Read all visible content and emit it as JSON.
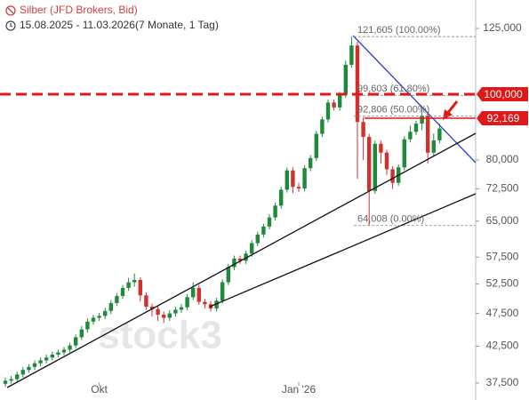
{
  "chart_data": {
    "type": "candlestick",
    "title": "Silber (JFD Brokers, Bid)",
    "subtitle": "15.08.2025 - 11.03.2026",
    "period": "(7 Monate, 1 Tag)",
    "watermark": "stock3",
    "log_scale": true,
    "up_color": "#1f8a3a",
    "down_color": "#d32f2f",
    "ylim": [
      35400,
      137700
    ],
    "yticks": [
      {
        "value": 37500,
        "label": "37,500"
      },
      {
        "value": 42500,
        "label": "42,500"
      },
      {
        "value": 47500,
        "label": "47,500"
      },
      {
        "value": 52500,
        "label": "52,500"
      },
      {
        "value": 57500,
        "label": "57,500"
      },
      {
        "value": 65000,
        "label": "65,000"
      },
      {
        "value": 72500,
        "label": "72,500"
      },
      {
        "value": 80000,
        "label": "80,000"
      },
      {
        "value": 125000,
        "label": "125,000"
      }
    ],
    "xticks": [
      {
        "value": 16,
        "label": "Okt"
      },
      {
        "value": 50,
        "label": "Jan '26"
      }
    ],
    "open": [
      37400,
      37800,
      38000,
      38600,
      39200,
      39600,
      40100,
      40500,
      40900,
      41300,
      41600,
      42000,
      42600,
      43800,
      45000,
      46200,
      46800,
      47100,
      47900,
      49200,
      50400,
      51800,
      52800,
      53200,
      50500,
      48600,
      48200,
      47300,
      46800,
      47500,
      48100,
      48500,
      50200,
      51800,
      49400,
      49000,
      48300,
      49600,
      52800,
      55600,
      57200,
      56800,
      58200,
      60300,
      62100,
      63800,
      65800,
      68500,
      72300,
      77200,
      73000,
      72600,
      77800,
      80500,
      87400,
      91800,
      97200,
      95600,
      99800,
      110500,
      118000,
      91000,
      86500,
      72000,
      84500,
      82000,
      77500,
      74000,
      78000,
      85800,
      88000,
      90500,
      93000,
      82000,
      85500
    ],
    "high": [
      38200,
      38400,
      39000,
      39600,
      40000,
      40500,
      40900,
      41300,
      41700,
      42000,
      42400,
      43000,
      44200,
      45500,
      46700,
      47300,
      47600,
      48400,
      49700,
      50900,
      52300,
      53600,
      54400,
      53700,
      51000,
      49100,
      48700,
      47800,
      48000,
      48600,
      49000,
      50700,
      52800,
      52300,
      49900,
      49500,
      50100,
      53300,
      56200,
      57800,
      57800,
      58800,
      60900,
      62700,
      64400,
      66500,
      69200,
      73000,
      78000,
      78000,
      74000,
      78600,
      81300,
      88300,
      92700,
      98200,
      98200,
      100800,
      112000,
      121605,
      119500,
      92500,
      87400,
      85400,
      85400,
      82800,
      78300,
      78800,
      86700,
      89900,
      91400,
      95500,
      93900,
      87500,
      90500
    ],
    "low": [
      37000,
      37400,
      37600,
      38200,
      38800,
      39200,
      39700,
      40100,
      40500,
      40900,
      41200,
      41600,
      42200,
      43400,
      44500,
      45700,
      46300,
      46600,
      47400,
      48700,
      49900,
      51300,
      52000,
      49500,
      48100,
      47000,
      46300,
      46000,
      46300,
      47000,
      47600,
      48000,
      49700,
      48900,
      48300,
      47800,
      47800,
      49100,
      52300,
      55000,
      56200,
      56200,
      57600,
      59700,
      61500,
      63200,
      65100,
      67800,
      71600,
      71500,
      71800,
      71900,
      77000,
      79700,
      86500,
      90900,
      94600,
      94600,
      98800,
      109400,
      75000,
      80000,
      64008,
      71300,
      79000,
      76000,
      72500,
      73300,
      77200,
      84900,
      87100,
      88500,
      79000,
      81200,
      84600
    ],
    "close": [
      37800,
      38000,
      38600,
      39200,
      39600,
      40100,
      40500,
      40900,
      41300,
      41600,
      42000,
      42600,
      43800,
      45000,
      46200,
      46800,
      47100,
      47900,
      49200,
      50400,
      51800,
      52800,
      53200,
      50500,
      48600,
      48200,
      47300,
      46800,
      47500,
      48100,
      48500,
      50200,
      51800,
      49400,
      49000,
      48300,
      49600,
      52800,
      55600,
      57200,
      56800,
      58200,
      60300,
      62100,
      63800,
      65800,
      68500,
      72300,
      77200,
      73000,
      72600,
      77800,
      80500,
      87400,
      91800,
      97200,
      95600,
      99800,
      110500,
      118000,
      91000,
      86500,
      72000,
      84500,
      82000,
      77500,
      74000,
      78000,
      85800,
      88000,
      90500,
      93000,
      82000,
      85500,
      89000
    ],
    "fib_levels": [
      {
        "value": 121605,
        "label": "121,605 (100.00%)"
      },
      {
        "value": 99603,
        "label": "99,603 (61.80%)"
      },
      {
        "value": 92806,
        "label": "92,806 (50.00%)"
      },
      {
        "value": 64008,
        "label": "64,008 (0.00%)"
      }
    ],
    "levels": [
      {
        "value": 100000,
        "label": "100,000",
        "color": "#e01818",
        "dashed": true
      },
      {
        "value": 92169,
        "label": "92,169",
        "color": "#e01818",
        "dashed": false
      }
    ]
  }
}
